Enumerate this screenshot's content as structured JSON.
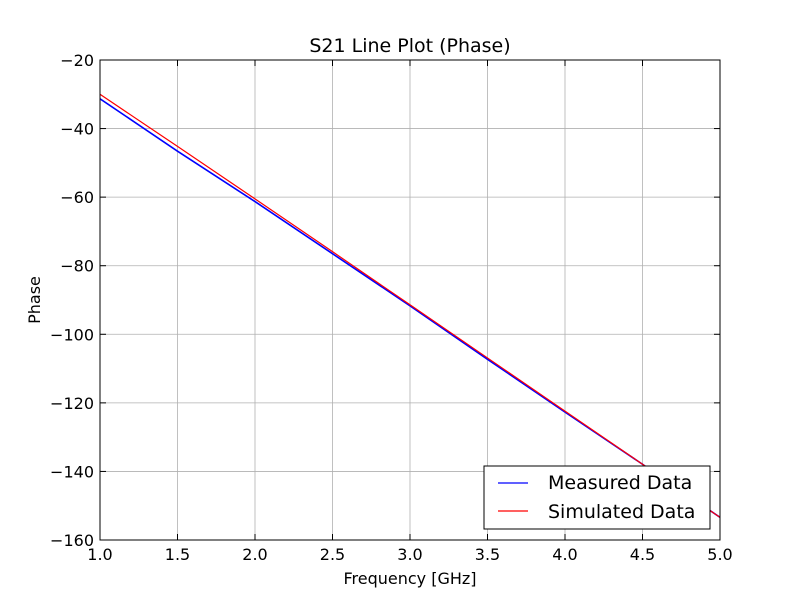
{
  "chart_data": {
    "type": "line",
    "title": "S21 Line Plot (Phase)",
    "xlabel": "Frequency [GHz]",
    "ylabel": "Phase",
    "xlim": [
      1.0,
      5.0
    ],
    "ylim": [
      -160,
      -20
    ],
    "xticks": [
      1.0,
      1.5,
      2.0,
      2.5,
      3.0,
      3.5,
      4.0,
      4.5,
      5.0
    ],
    "xtick_labels": [
      "1.0",
      "1.5",
      "2.0",
      "2.5",
      "3.0",
      "3.5",
      "4.0",
      "4.5",
      "5.0"
    ],
    "yticks": [
      -20,
      -40,
      -60,
      -80,
      -100,
      -120,
      -140,
      -160
    ],
    "ytick_labels": [
      "−20",
      "−40",
      "−60",
      "−80",
      "−100",
      "−120",
      "−140",
      "−160"
    ],
    "grid": true,
    "legend_position": "lower-right",
    "series": [
      {
        "name": "Measured Data",
        "color": "#0000ff",
        "x": [
          1.0,
          1.5,
          2.0,
          2.5,
          3.0,
          3.5,
          4.0,
          4.5,
          5.0
        ],
        "values": [
          -31.3,
          -46.6,
          -61.3,
          -76.5,
          -91.7,
          -107.3,
          -122.7,
          -137.9,
          -153.4
        ]
      },
      {
        "name": "Simulated Data",
        "color": "#ff0000",
        "x": [
          1.0,
          1.5,
          2.0,
          2.5,
          3.0,
          3.5,
          4.0,
          4.5,
          5.0
        ],
        "values": [
          -30.0,
          -45.2,
          -60.5,
          -75.9,
          -91.4,
          -106.9,
          -122.4,
          -137.9,
          -153.4
        ]
      }
    ]
  }
}
